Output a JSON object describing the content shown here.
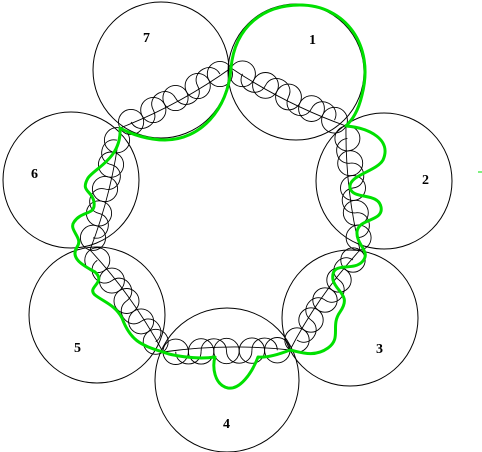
{
  "diagram": {
    "labels": [
      "1",
      "2",
      "3",
      "4",
      "5",
      "6",
      "7"
    ],
    "colors": {
      "stroke": "#000000",
      "path": "#00e000",
      "background": "#ffffff"
    }
  }
}
